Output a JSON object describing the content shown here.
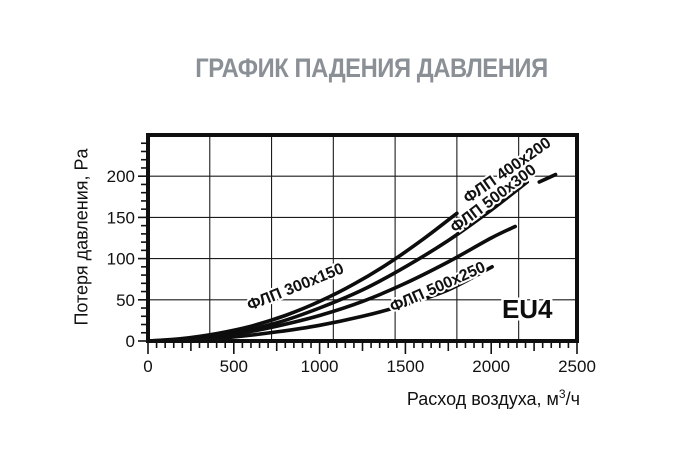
{
  "page": {
    "title": "ГРАФИК ПАДЕНИЯ ДАВЛЕНИЯ",
    "title_color": "#8a9096"
  },
  "chart_data": {
    "type": "line",
    "title": "ГРАФИК ПАДЕНИЯ ДАВЛЕНИЯ",
    "xlabel": "Расход воздуха, м³/ч",
    "xlabel_parts": {
      "main": "Расход воздуха, м",
      "sup": "3",
      "tail": "/ч"
    },
    "ylabel": "Потеря давления, Pa",
    "xlim": [
      0,
      2500
    ],
    "ylim": [
      0,
      250
    ],
    "x_tick_labels": [
      0,
      500,
      1000,
      1500,
      2000,
      2500
    ],
    "y_tick_labels": [
      0,
      50,
      100,
      150,
      200
    ],
    "x_minor_tick_step": 50,
    "x_mid_tick_step": 250,
    "y_minor_tick_step": 10,
    "x_gridlines": [
      360,
      720,
      1080,
      1440,
      1800,
      2160
    ],
    "y_gridlines": [
      50,
      100,
      150,
      200
    ],
    "grid": true,
    "legend_position": "inline-rotated-labels",
    "line_color": "#0d0d0d",
    "annotation": {
      "text": "EU4",
      "x": 2210,
      "y": 28
    },
    "series": [
      {
        "name": "ФЛП 300x150",
        "points": [
          [
            0,
            0
          ],
          [
            200,
            3
          ],
          [
            400,
            9
          ],
          [
            600,
            18
          ],
          [
            800,
            31
          ],
          [
            1000,
            48
          ],
          [
            1200,
            69
          ],
          [
            1400,
            94
          ],
          [
            1600,
            123
          ],
          [
            1800,
            155
          ]
        ],
        "label": {
          "x": 870,
          "y": 60,
          "angle": -22
        }
      },
      {
        "name": "ФЛП 400x200",
        "points": [
          [
            0,
            0
          ],
          [
            250,
            3
          ],
          [
            500,
            10
          ],
          [
            750,
            22
          ],
          [
            1000,
            40
          ],
          [
            1250,
            62
          ],
          [
            1500,
            90
          ],
          [
            1750,
            122
          ],
          [
            2000,
            159
          ],
          [
            2210,
            193
          ]
        ],
        "label": {
          "x": 2110,
          "y": 202,
          "angle": -35
        }
      },
      {
        "name": "ФЛП 500x300",
        "points": [
          [
            0,
            0
          ],
          [
            250,
            2
          ],
          [
            500,
            8
          ],
          [
            750,
            18
          ],
          [
            1000,
            31
          ],
          [
            1250,
            48
          ],
          [
            1500,
            70
          ],
          [
            1750,
            96
          ],
          [
            2000,
            125
          ],
          [
            2140,
            139
          ]
        ],
        "label": {
          "x": 2030,
          "y": 168,
          "angle": -37
        },
        "label_dash": {
          "x1": 2280,
          "y1": 193,
          "x2": 2375,
          "y2": 202
        }
      },
      {
        "name": "ФЛП 500x250",
        "points": [
          [
            0,
            0
          ],
          [
            250,
            1
          ],
          [
            500,
            5
          ],
          [
            750,
            11
          ],
          [
            1000,
            19
          ],
          [
            1250,
            30
          ],
          [
            1500,
            44
          ],
          [
            1750,
            62
          ],
          [
            2005,
            90
          ]
        ],
        "label": {
          "x": 1700,
          "y": 60,
          "angle": -24
        }
      }
    ]
  }
}
